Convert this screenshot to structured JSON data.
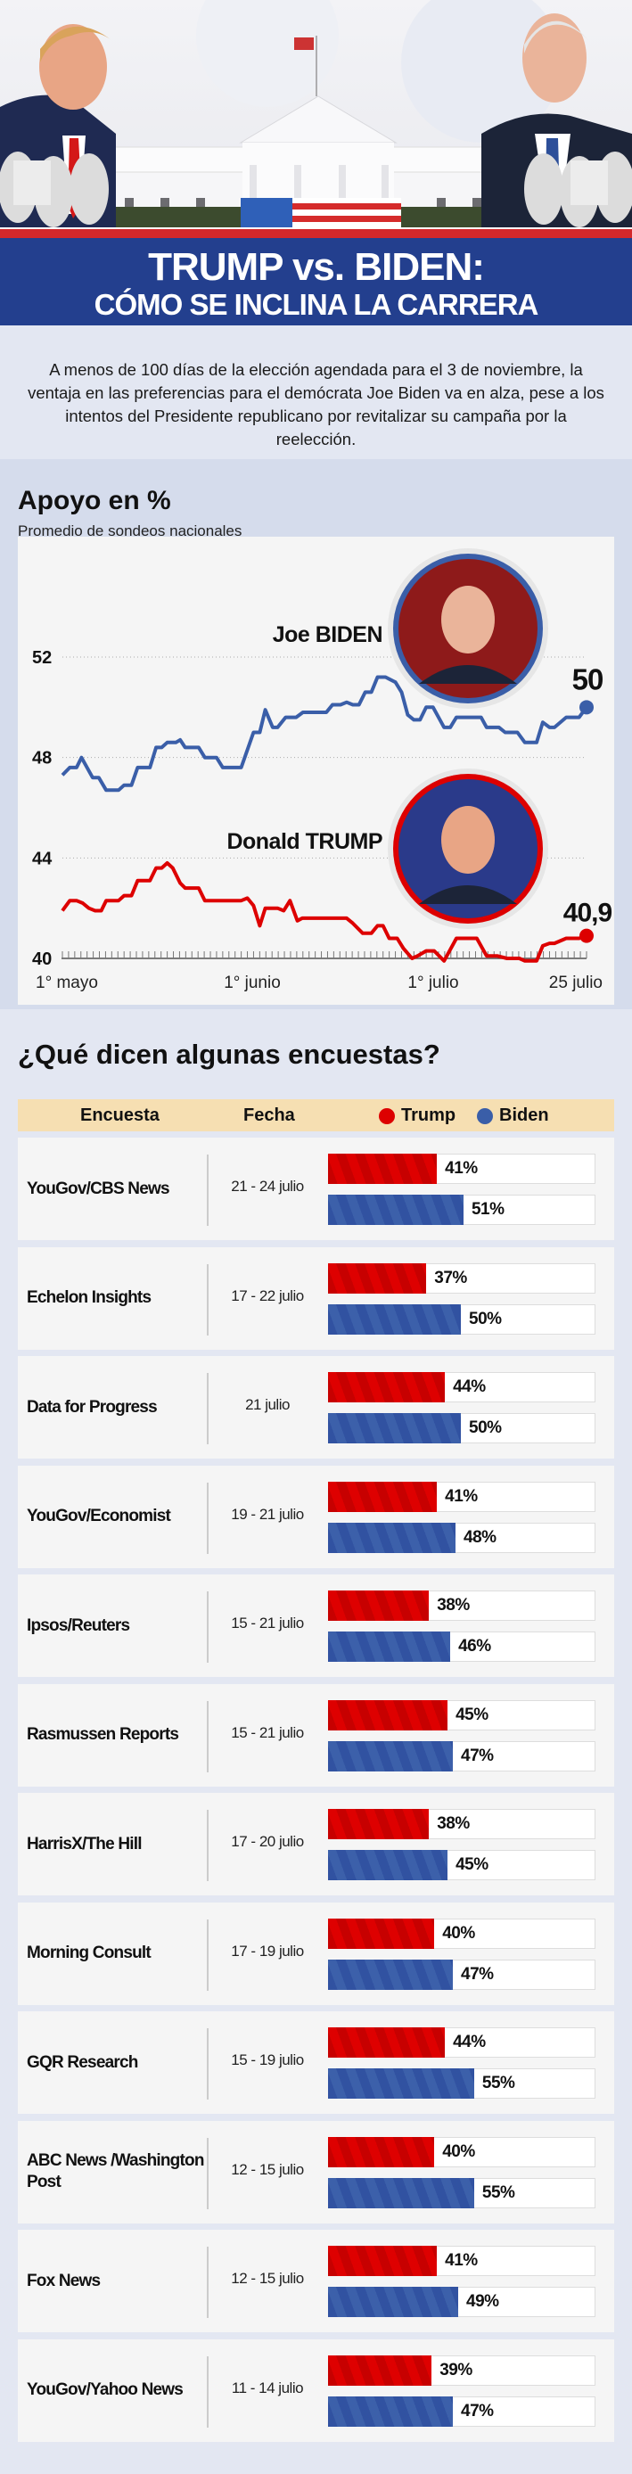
{
  "header": {
    "title_line1": "TRUMP vs. BIDEN:",
    "title_line2": "CÓMO SE INCLINA LA CARRERA",
    "intro": "A menos de 100 días de la elección agendada para el 3 de noviembre, la ventaja en las preferencias para el demócrata Joe Biden va en alza, pese a los intentos del Presidente republicano por revitalizar su campaña por la reelección."
  },
  "colors": {
    "trump": "#dd0000",
    "biden": "#3a5ea8",
    "banner": "#233f8e",
    "stripe": "#d4282b"
  },
  "chart_data": {
    "type": "line",
    "title": "Apoyo en %",
    "subtitle": "Promedio de sondeos nacionales",
    "xlabel": "",
    "ylabel": "",
    "x_unit": "days since 1 May",
    "xlim": [
      0,
      85
    ],
    "ylim": [
      40,
      52
    ],
    "yticks": [
      40,
      44,
      48,
      52
    ],
    "xticks": [
      {
        "day": 0,
        "label": "1° mayo"
      },
      {
        "day": 31,
        "label": "1° junio"
      },
      {
        "day": 61,
        "label": "1° julio"
      },
      {
        "day": 85,
        "label": "25 julio"
      }
    ],
    "grid": true,
    "series": [
      {
        "name": "Joe BIDEN",
        "color": "#3a5ea8",
        "end_label": "50",
        "x": [
          0,
          1.2,
          2.3,
          3.1,
          4.9,
          5.9,
          7.1,
          9.1,
          10,
          11.2,
          12.2,
          14.2,
          15.2,
          16.1,
          17,
          18.4,
          19.1,
          19.9,
          22.1,
          23.1,
          25,
          26,
          29,
          31,
          32,
          32.9,
          34.1,
          34.9,
          36.2,
          37.9,
          39,
          42.8,
          43.8,
          45.1,
          46.1,
          47.1,
          48.1,
          49.1,
          50.1,
          51.1,
          52.4,
          54,
          55,
          56,
          57,
          58,
          59,
          60.1,
          61.9,
          62.9,
          63.9,
          67.9,
          68.8,
          70.8,
          71.8,
          73.8,
          75,
          76.9,
          77.9,
          79,
          79.8,
          81.7,
          83.8,
          85
        ],
        "y": [
          47.3,
          47.6,
          47.6,
          48.0,
          47.2,
          47.2,
          46.7,
          46.7,
          46.9,
          46.9,
          47.6,
          47.6,
          48.4,
          48.4,
          48.6,
          48.6,
          48.7,
          48.4,
          48.4,
          48.0,
          48.0,
          47.6,
          47.6,
          49.0,
          49.0,
          49.9,
          49.2,
          49.2,
          49.6,
          49.6,
          49.8,
          49.8,
          50.1,
          50.1,
          50.2,
          50.1,
          50.1,
          50.6,
          50.6,
          51.2,
          51.2,
          51.0,
          50.6,
          49.7,
          49.5,
          49.5,
          50.0,
          50.0,
          49.2,
          49.2,
          49.6,
          49.6,
          49.2,
          49.2,
          49.0,
          49.0,
          48.6,
          48.6,
          49.4,
          49.2,
          49.2,
          49.6,
          49.6,
          50.0
        ]
      },
      {
        "name": "Donald TRUMP",
        "color": "#dd0000",
        "end_label": "40,9",
        "x": [
          0,
          1.2,
          2.3,
          3.3,
          4.3,
          5.3,
          6.3,
          7.1,
          9.1,
          10,
          11.2,
          12.2,
          14.2,
          15.2,
          16.1,
          17,
          17.9,
          19.1,
          19.9,
          22.1,
          23.1,
          29,
          30,
          31,
          32,
          32.9,
          34.9,
          35.9,
          36.9,
          38.1,
          38.9,
          46.1,
          47.1,
          48.7,
          50.1,
          51.1,
          52,
          53,
          54.3,
          55.3,
          56.7,
          57.6,
          59,
          60.3,
          61.9,
          63.9,
          67.2,
          68.8,
          70.5,
          72.1,
          74.1,
          75,
          76.9,
          77.9,
          79,
          79.8,
          81.7,
          83.8,
          85
        ],
        "y": [
          41.9,
          42.3,
          42.3,
          42.2,
          42.0,
          41.9,
          41.9,
          42.3,
          42.3,
          42.5,
          42.5,
          43.1,
          43.1,
          43.6,
          43.6,
          43.8,
          43.6,
          43.0,
          42.8,
          42.8,
          42.3,
          42.3,
          42.4,
          42.1,
          41.3,
          42.0,
          42.0,
          41.9,
          42.3,
          41.5,
          41.6,
          41.6,
          41.4,
          41.0,
          41.0,
          41.3,
          41.3,
          40.8,
          40.8,
          40.4,
          40.0,
          40.1,
          40.3,
          40.3,
          39.9,
          40.8,
          40.8,
          40.1,
          40.1,
          40.0,
          40.0,
          39.9,
          39.9,
          40.5,
          40.6,
          40.6,
          40.8,
          40.8,
          40.9
        ]
      }
    ]
  },
  "polls": {
    "title": "¿Qué dicen algunas encuestas?",
    "headers": {
      "poll": "Encuesta",
      "date": "Fecha",
      "trump": "Trump",
      "biden": "Biden"
    },
    "rows": [
      {
        "name": "YouGov/CBS News",
        "date": "21 - 24 julio",
        "trump": 41,
        "biden": 51,
        "trump_label": "41%",
        "biden_label": "51%"
      },
      {
        "name": "Echelon Insights",
        "date": "17 - 22 julio",
        "trump": 37,
        "biden": 50,
        "trump_label": "37%",
        "biden_label": "50%"
      },
      {
        "name": "Data for Progress",
        "date": "21 julio",
        "trump": 44,
        "biden": 50,
        "trump_label": "44%",
        "biden_label": "50%"
      },
      {
        "name": "YouGov/Economist",
        "date": "19 - 21 julio",
        "trump": 41,
        "biden": 48,
        "trump_label": "41%",
        "biden_label": "48%"
      },
      {
        "name": "Ipsos/Reuters",
        "date": "15 - 21 julio",
        "trump": 38,
        "biden": 46,
        "trump_label": "38%",
        "biden_label": "46%"
      },
      {
        "name": "Rasmussen Reports",
        "date": "15 - 21 julio",
        "trump": 45,
        "biden": 47,
        "trump_label": "45%",
        "biden_label": "47%"
      },
      {
        "name": "HarrisX/The Hill",
        "date": "17 - 20 julio",
        "trump": 38,
        "biden": 45,
        "trump_label": "38%",
        "biden_label": "45%"
      },
      {
        "name": "Morning Consult",
        "date": "17 - 19 julio",
        "trump": 40,
        "biden": 47,
        "trump_label": "40%",
        "biden_label": "47%"
      },
      {
        "name": "GQR Research",
        "date": "15 - 19 julio",
        "trump": 44,
        "biden": 55,
        "trump_label": "44%",
        "biden_label": "55%"
      },
      {
        "name": "ABC News /Washington Post",
        "date": "12 - 15 julio",
        "trump": 40,
        "biden": 55,
        "trump_label": "40%",
        "biden_label": "55%"
      },
      {
        "name": "Fox News",
        "date": "12 - 15 julio",
        "trump": 41,
        "biden": 49,
        "trump_label": "41%",
        "biden_label": "49%"
      },
      {
        "name": "YouGov/Yahoo News",
        "date": "11 - 14 julio",
        "trump": 39,
        "biden": 47,
        "trump_label": "39%",
        "biden_label": "47%"
      }
    ]
  }
}
